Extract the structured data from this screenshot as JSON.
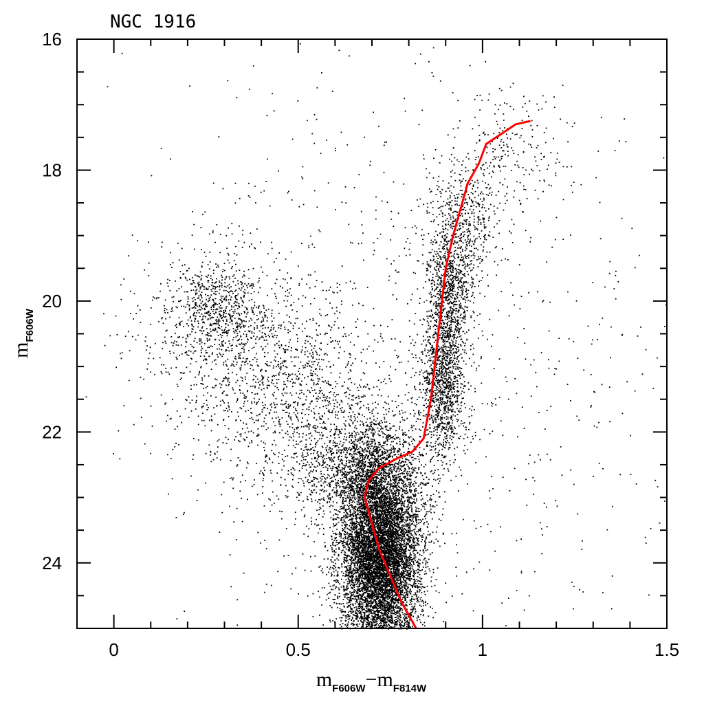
{
  "chart_data": {
    "type": "scatter",
    "title": "NGC 1916",
    "xlabel": {
      "main": "m",
      "sub1": "F606W",
      "sep": "−m",
      "sub2": "F814W"
    },
    "ylabel": {
      "main": "m",
      "sub": "F606W"
    },
    "xlim": [
      -0.1,
      1.5
    ],
    "ylim": [
      25.0,
      16.0
    ],
    "y_inverted": true,
    "x_ticks": [
      {
        "value": 0,
        "label": "0"
      },
      {
        "value": 0.5,
        "label": "0.5"
      },
      {
        "value": 1,
        "label": "1"
      },
      {
        "value": 1.5,
        "label": "1.5"
      }
    ],
    "y_ticks": [
      {
        "value": 16,
        "label": "16"
      },
      {
        "value": 18,
        "label": "18"
      },
      {
        "value": 20,
        "label": "20"
      },
      {
        "value": 22,
        "label": "22"
      },
      {
        "value": 24,
        "label": "24"
      }
    ],
    "grid": false,
    "legend": "none",
    "point_color": "#000000",
    "line_color": "#ff0000",
    "density_components": [
      {
        "x": 0.72,
        "y": 23.9,
        "sx": 0.055,
        "sy": 0.75,
        "weight": 0.52,
        "note": "main sequence / turnoff"
      },
      {
        "x": 0.68,
        "y": 22.6,
        "sx": 0.08,
        "sy": 0.45,
        "weight": 0.1
      },
      {
        "x": 0.89,
        "y": 21.2,
        "sx": 0.03,
        "sy": 0.6,
        "weight": 0.08
      },
      {
        "x": 0.91,
        "y": 19.8,
        "sx": 0.03,
        "sy": 0.55,
        "weight": 0.05
      },
      {
        "x": 0.95,
        "y": 18.8,
        "sx": 0.05,
        "sy": 0.45,
        "weight": 0.025
      },
      {
        "x": 1.07,
        "y": 17.7,
        "sx": 0.08,
        "sy": 0.45,
        "weight": 0.012
      },
      {
        "x": 0.27,
        "y": 20.1,
        "sx": 0.06,
        "sy": 0.35,
        "weight": 0.03
      },
      {
        "x": 0.3,
        "y": 20.6,
        "sx": 0.12,
        "sy": 0.8,
        "weight": 0.05
      },
      {
        "x": 0.5,
        "y": 21.6,
        "sx": 0.12,
        "sy": 0.8,
        "weight": 0.06
      },
      {
        "x": 0.8,
        "y": 21.0,
        "sx": 0.35,
        "sy": 2.5,
        "weight": 0.065
      }
    ],
    "isochrone": [
      {
        "x": 0.82,
        "y": 25.0
      },
      {
        "x": 0.78,
        "y": 24.6
      },
      {
        "x": 0.75,
        "y": 24.2
      },
      {
        "x": 0.72,
        "y": 23.8
      },
      {
        "x": 0.7,
        "y": 23.4
      },
      {
        "x": 0.68,
        "y": 23.0
      },
      {
        "x": 0.69,
        "y": 22.75
      },
      {
        "x": 0.72,
        "y": 22.55
      },
      {
        "x": 0.77,
        "y": 22.4
      },
      {
        "x": 0.81,
        "y": 22.3
      },
      {
        "x": 0.84,
        "y": 22.1
      },
      {
        "x": 0.86,
        "y": 21.5
      },
      {
        "x": 0.87,
        "y": 21.0
      },
      {
        "x": 0.88,
        "y": 20.5
      },
      {
        "x": 0.89,
        "y": 20.0
      },
      {
        "x": 0.9,
        "y": 19.5
      },
      {
        "x": 0.92,
        "y": 19.0
      },
      {
        "x": 0.94,
        "y": 18.6
      },
      {
        "x": 0.96,
        "y": 18.2
      },
      {
        "x": 0.99,
        "y": 17.9
      },
      {
        "x": 1.01,
        "y": 17.6
      },
      {
        "x": 1.05,
        "y": 17.45
      },
      {
        "x": 1.09,
        "y": 17.3
      },
      {
        "x": 1.13,
        "y": 17.25
      }
    ]
  }
}
